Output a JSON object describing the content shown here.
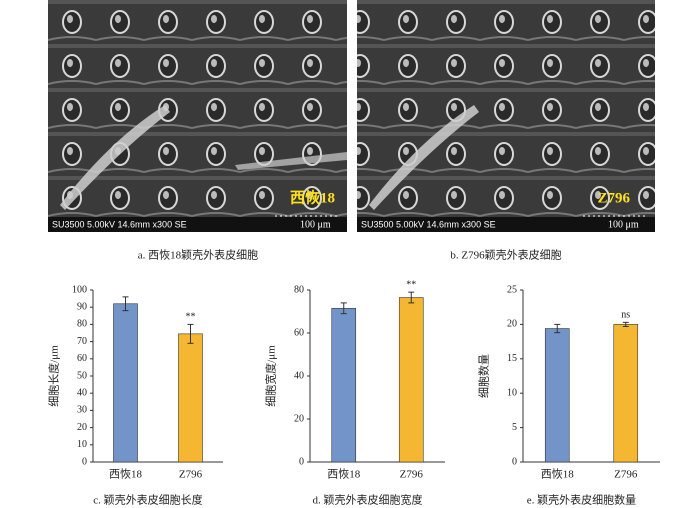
{
  "figures": [
    {
      "scale_info": "SU3500 5.00kV 14.6mm x300 SE",
      "scale_bar": "100 μm",
      "label": "西恢18",
      "caption": "a. 西恢18颖壳外表皮细胞"
    },
    {
      "scale_info": "SU3500 5.00kV 14.6mm x300 SE",
      "scale_bar": "100 μm",
      "label": "Z796",
      "caption": "b. Z796颖壳外表皮细胞"
    }
  ],
  "chart_data": [
    {
      "type": "bar",
      "y_label": "细胞长度/μm",
      "caption": "c. 颖壳外表皮细胞长度",
      "categories": [
        "西恢18",
        "Z796"
      ],
      "values": [
        92,
        74.5
      ],
      "errors": [
        4,
        5.5
      ],
      "colors": [
        "#7394c9",
        "#f5b731"
      ],
      "annotation": "**",
      "ylim": [
        0,
        100
      ],
      "yticks": [
        0,
        10,
        20,
        30,
        40,
        50,
        60,
        70,
        80,
        90,
        100
      ],
      "grid": false
    },
    {
      "type": "bar",
      "y_label": "细胞宽度/μm",
      "caption": "d. 颖壳外表皮细胞宽度",
      "categories": [
        "西恢18",
        "Z796"
      ],
      "values": [
        71.5,
        76.5
      ],
      "errors": [
        2.5,
        2.5
      ],
      "colors": [
        "#7394c9",
        "#f5b731"
      ],
      "annotation": "**",
      "ylim": [
        0,
        80
      ],
      "yticks": [
        0,
        20,
        40,
        60,
        80
      ],
      "grid": false
    },
    {
      "type": "bar",
      "y_label": "细胞数量",
      "caption": "e. 颖壳外表皮细胞数量",
      "categories": [
        "西恢18",
        "Z796"
      ],
      "values": [
        19.4,
        20
      ],
      "errors": [
        0.6,
        0.3
      ],
      "colors": [
        "#7394c9",
        "#f5b731"
      ],
      "annotation": "ns",
      "ylim": [
        0,
        25
      ],
      "yticks": [
        0,
        5,
        10,
        15,
        20,
        25
      ],
      "grid": false
    }
  ]
}
